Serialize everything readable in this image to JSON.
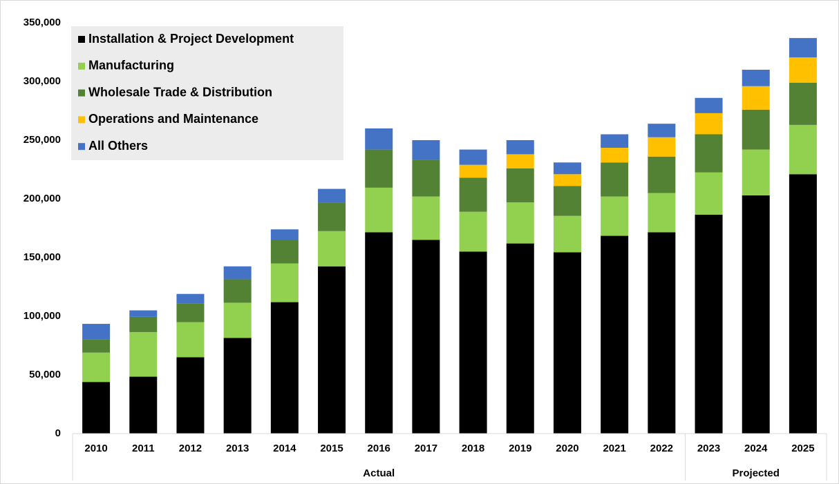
{
  "chart_data": {
    "type": "stacked_bar",
    "categories": [
      "2010",
      "2011",
      "2012",
      "2013",
      "2014",
      "2015",
      "2016",
      "2017",
      "2018",
      "2019",
      "2020",
      "2021",
      "2022",
      "2023",
      "2024",
      "2025"
    ],
    "groups": [
      {
        "label": "Actual",
        "from": "2010",
        "to": "2022"
      },
      {
        "label": "Projected",
        "from": "2023",
        "to": "2025"
      }
    ],
    "series": [
      {
        "name": "Installation & Project Development",
        "color": "#000000",
        "values": [
          44000,
          48500,
          65000,
          81500,
          112000,
          142500,
          171500,
          165000,
          155000,
          162000,
          154500,
          168500,
          171500,
          186500,
          203000,
          221000
        ]
      },
      {
        "name": "Manufacturing",
        "color": "#92d050",
        "values": [
          25000,
          38000,
          30000,
          30000,
          33000,
          30000,
          38000,
          37000,
          34000,
          35000,
          31000,
          33500,
          33500,
          36000,
          39000,
          42000
        ]
      },
      {
        "name": "Wholesale Trade & Distribution",
        "color": "#548235",
        "values": [
          11500,
          13000,
          16000,
          20000,
          20000,
          24500,
          32500,
          31000,
          29000,
          29000,
          25500,
          29000,
          31000,
          32500,
          34000,
          36000
        ]
      },
      {
        "name": "Operations and Maintenance",
        "color": "#ffc000",
        "values": [
          0,
          0,
          0,
          0,
          0,
          0,
          0,
          0,
          11000,
          12000,
          10000,
          12500,
          16500,
          18000,
          20000,
          21500
        ]
      },
      {
        "name": "All Others",
        "color": "#4472c4",
        "values": [
          13000,
          5500,
          8000,
          11000,
          9000,
          11500,
          18000,
          17000,
          13000,
          12000,
          10000,
          11500,
          11500,
          13000,
          14000,
          16500
        ]
      }
    ],
    "ylim": [
      0,
      350000
    ],
    "yticks": [
      0,
      {
        "value": 50000,
        "label": "50,000"
      },
      {
        "value": 100000,
        "label": "100,000"
      },
      {
        "value": 150000,
        "label": "150,000"
      },
      {
        "value": 200000,
        "label": "200,000"
      },
      {
        "value": 250000,
        "label": "250,000"
      },
      {
        "value": 300000,
        "label": "300,000"
      },
      {
        "value": 350000,
        "label": "350,000"
      }
    ],
    "legend": "top-left"
  }
}
